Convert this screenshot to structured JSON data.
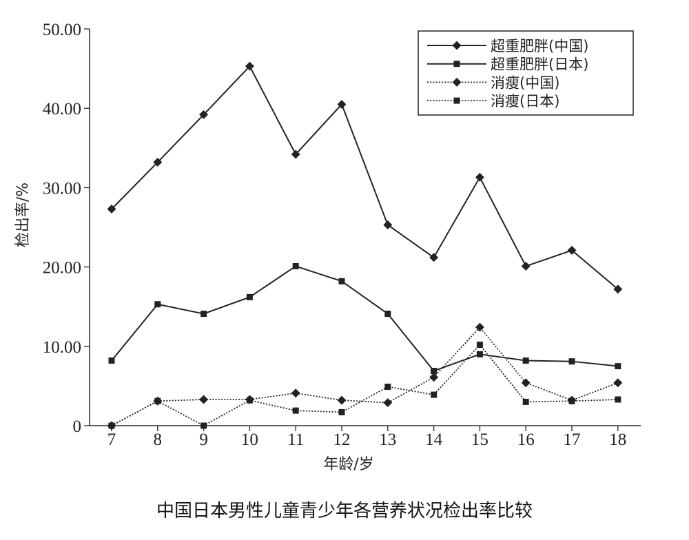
{
  "chart_data": {
    "type": "line",
    "title": "中国日本男性儿童青少年各营养状况检出率比较",
    "xlabel": "年龄/岁",
    "ylabel": "检出率/%",
    "x": [
      7,
      8,
      9,
      10,
      11,
      12,
      13,
      14,
      15,
      16,
      17,
      18
    ],
    "ylim": [
      0,
      50
    ],
    "yticks": [
      "0",
      "10.00",
      "20.00",
      "30.00",
      "40.00",
      "50.00"
    ],
    "grid": false,
    "legend_position": "top-right",
    "series": [
      {
        "name": "超重肥胖(中国)",
        "line": "solid",
        "marker": "diamond",
        "color": "#222222",
        "values": [
          27.3,
          33.2,
          39.2,
          45.3,
          34.2,
          40.5,
          25.3,
          21.2,
          31.3,
          20.1,
          22.1,
          17.2
        ]
      },
      {
        "name": "超重肥胖(日本)",
        "line": "solid",
        "marker": "square",
        "color": "#222222",
        "values": [
          8.2,
          15.3,
          14.1,
          16.2,
          20.1,
          18.2,
          14.1,
          6.9,
          9.0,
          8.2,
          8.1,
          7.5
        ]
      },
      {
        "name": "消瘦(中国)",
        "line": "dotted",
        "marker": "diamond",
        "color": "#222222",
        "values": [
          0,
          3.1,
          3.3,
          3.3,
          4.1,
          3.2,
          2.9,
          6.1,
          12.4,
          5.4,
          3.2,
          5.4
        ]
      },
      {
        "name": "消瘦(日本)",
        "line": "dotted",
        "marker": "square",
        "color": "#222222",
        "values": [
          0,
          3.1,
          0,
          3.2,
          1.9,
          1.7,
          4.9,
          3.9,
          10.2,
          3.0,
          3.1,
          3.3
        ]
      }
    ]
  }
}
